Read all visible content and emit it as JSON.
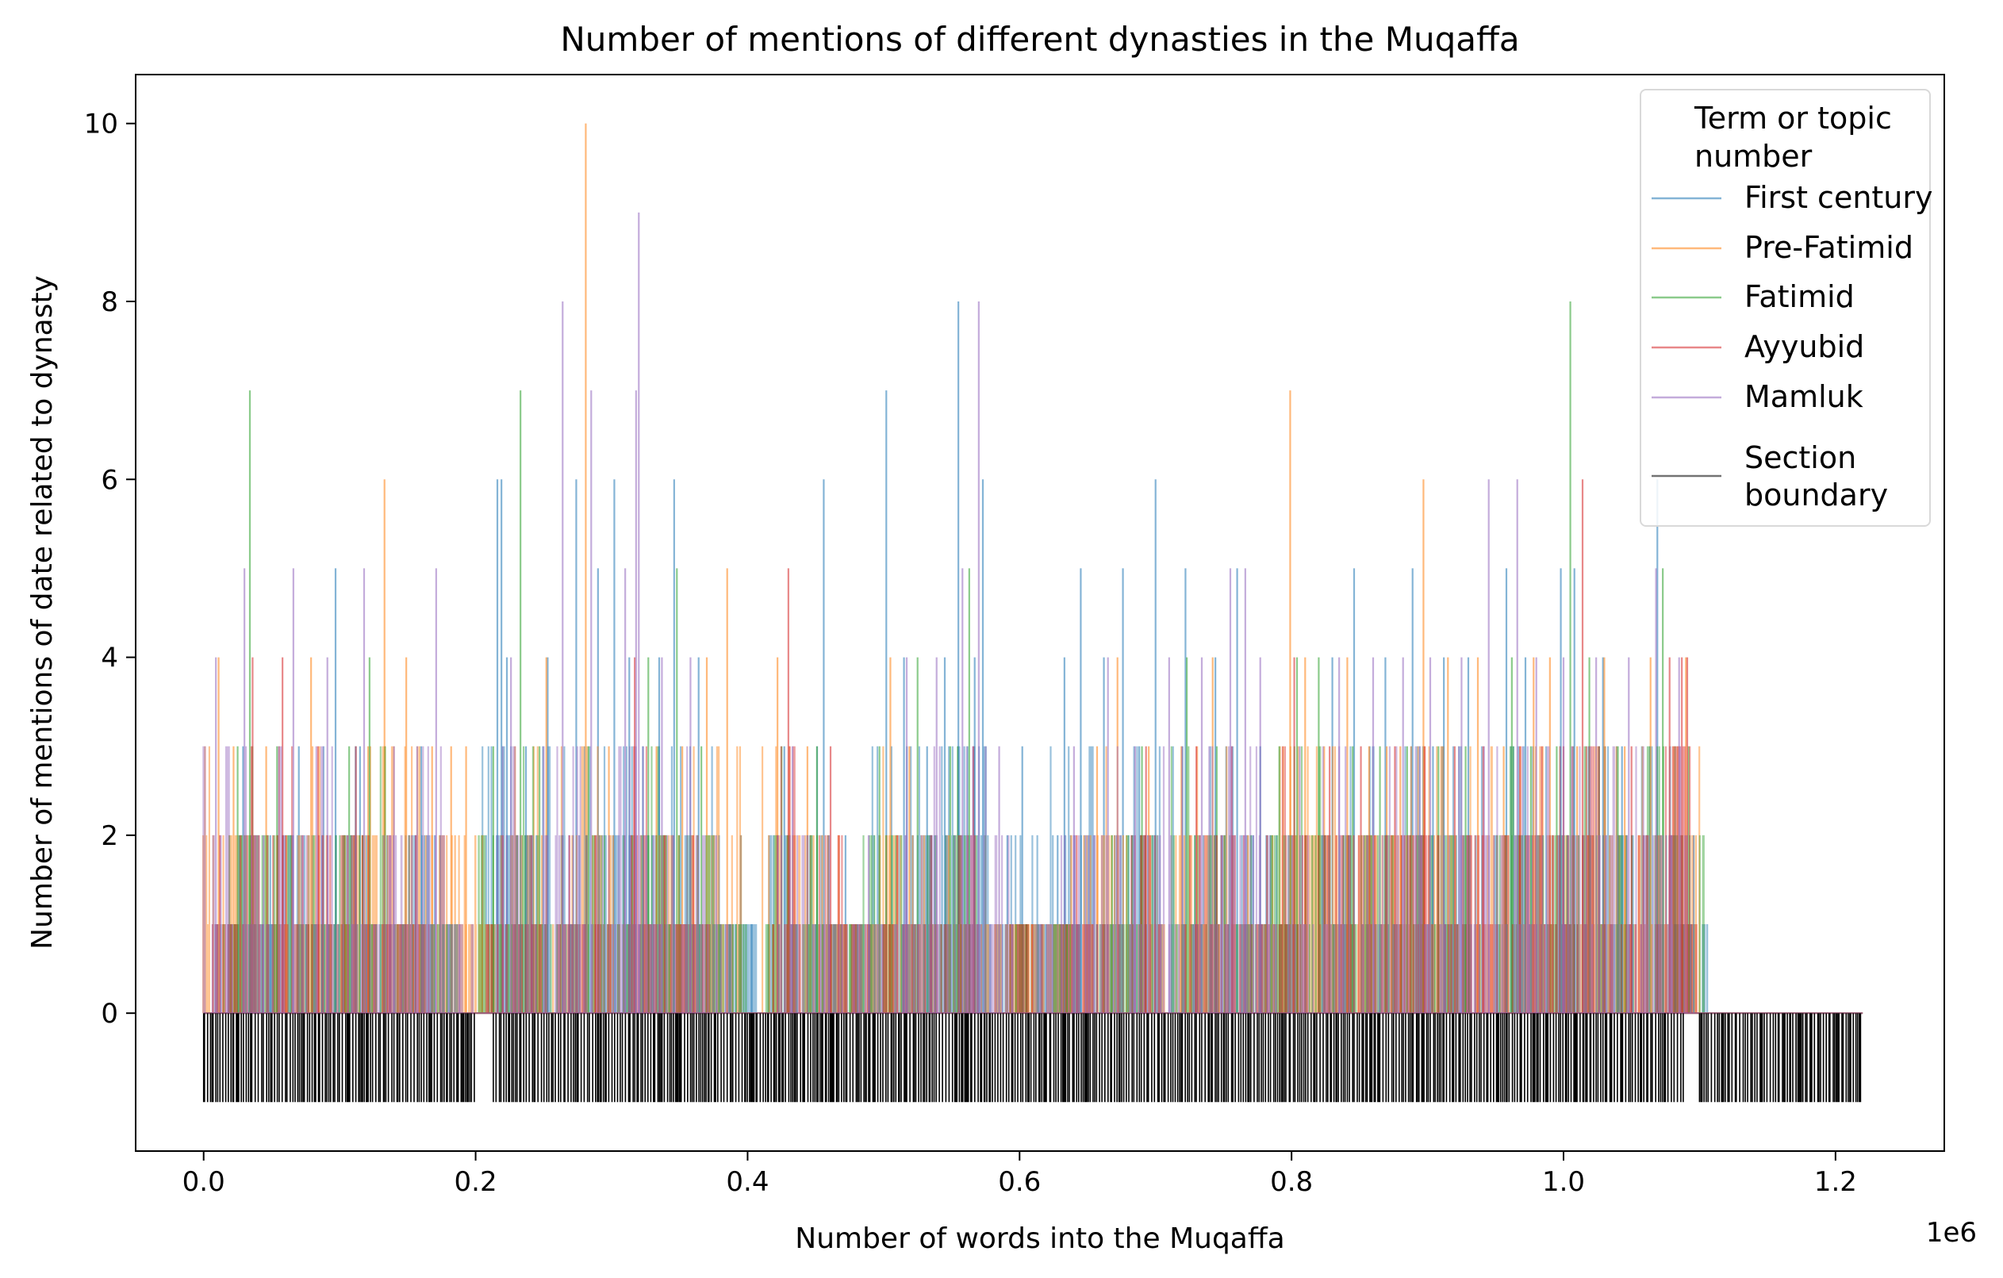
{
  "chart_data": {
    "type": "line",
    "title": "Number of mentions of different dynasties in the Muqaffa",
    "xlabel": "Number of words into the Muqaffa",
    "ylabel": "Number of mentions of date related to dynasty",
    "x_offset_label": "1e6",
    "xlim": [
      -0.05,
      1.28
    ],
    "ylim": [
      -1.55,
      10.55
    ],
    "x_tick_values": [
      0.0,
      0.2,
      0.4,
      0.6,
      0.8,
      1.0,
      1.2
    ],
    "x_tick_labels": [
      "0.0",
      "0.2",
      "0.4",
      "0.6",
      "0.8",
      "1.0",
      "1.2"
    ],
    "y_tick_values": [
      0,
      2,
      4,
      6,
      8,
      10
    ],
    "y_tick_labels": [
      "0",
      "2",
      "4",
      "6",
      "8",
      "10"
    ],
    "grid": false,
    "legend_title": "Term or topic number",
    "legend_title_lines": [
      "Term or topic",
      "number"
    ],
    "legend_position": "top-right",
    "series": [
      {
        "name": "First century",
        "color": "#1f77b4",
        "peaks": [
          [
            0.018,
            1
          ],
          [
            0.029,
            3
          ],
          [
            0.049,
            2
          ],
          [
            0.07,
            3
          ],
          [
            0.087,
            2
          ],
          [
            0.097,
            5
          ],
          [
            0.115,
            3
          ],
          [
            0.135,
            2
          ],
          [
            0.16,
            3
          ],
          [
            0.174,
            2
          ],
          [
            0.216,
            6
          ],
          [
            0.219,
            6
          ],
          [
            0.223,
            4
          ],
          [
            0.237,
            3
          ],
          [
            0.253,
            4
          ],
          [
            0.274,
            6
          ],
          [
            0.29,
            5
          ],
          [
            0.302,
            6
          ],
          [
            0.313,
            4
          ],
          [
            0.323,
            3
          ],
          [
            0.335,
            4
          ],
          [
            0.346,
            6
          ],
          [
            0.364,
            4
          ],
          [
            0.379,
            2
          ],
          [
            0.395,
            2
          ],
          [
            0.403,
            1
          ],
          [
            0.427,
            3
          ],
          [
            0.444,
            2
          ],
          [
            0.456,
            6
          ],
          [
            0.472,
            2
          ],
          [
            0.49,
            1
          ],
          [
            0.502,
            7
          ],
          [
            0.515,
            4
          ],
          [
            0.532,
            3
          ],
          [
            0.545,
            4
          ],
          [
            0.555,
            8
          ],
          [
            0.567,
            4
          ],
          [
            0.573,
            6
          ],
          [
            0.591,
            2
          ],
          [
            0.602,
            3
          ],
          [
            0.62,
            1
          ],
          [
            0.628,
            2
          ],
          [
            0.633,
            4
          ],
          [
            0.645,
            5
          ],
          [
            0.662,
            4
          ],
          [
            0.676,
            5
          ],
          [
            0.688,
            3
          ],
          [
            0.7,
            6
          ],
          [
            0.722,
            5
          ],
          [
            0.744,
            4
          ],
          [
            0.76,
            5
          ],
          [
            0.777,
            3
          ],
          [
            0.796,
            1
          ],
          [
            0.83,
            4
          ],
          [
            0.846,
            5
          ],
          [
            0.869,
            4
          ],
          [
            0.889,
            5
          ],
          [
            0.904,
            3
          ],
          [
            0.912,
            4
          ],
          [
            0.93,
            4
          ],
          [
            0.958,
            5
          ],
          [
            0.972,
            4
          ],
          [
            0.998,
            5
          ],
          [
            1.008,
            5
          ],
          [
            1.029,
            4
          ],
          [
            1.043,
            3
          ],
          [
            1.069,
            6
          ],
          [
            1.082,
            2
          ],
          [
            1.094,
            1
          ]
        ]
      },
      {
        "name": "Pre-Fatimid",
        "color": "#ff7f0e",
        "peaks": [
          [
            0.011,
            4
          ],
          [
            0.022,
            3
          ],
          [
            0.046,
            3
          ],
          [
            0.061,
            2
          ],
          [
            0.079,
            4
          ],
          [
            0.104,
            2
          ],
          [
            0.121,
            3
          ],
          [
            0.133,
            6
          ],
          [
            0.149,
            4
          ],
          [
            0.168,
            3
          ],
          [
            0.182,
            3
          ],
          [
            0.193,
            3
          ],
          [
            0.205,
            2
          ],
          [
            0.229,
            3
          ],
          [
            0.252,
            4
          ],
          [
            0.281,
            10
          ],
          [
            0.298,
            3
          ],
          [
            0.315,
            2
          ],
          [
            0.333,
            3
          ],
          [
            0.352,
            3
          ],
          [
            0.37,
            4
          ],
          [
            0.385,
            5
          ],
          [
            0.422,
            4
          ],
          [
            0.444,
            3
          ],
          [
            0.467,
            2
          ],
          [
            0.484,
            1
          ],
          [
            0.505,
            4
          ],
          [
            0.519,
            3
          ],
          [
            0.548,
            2
          ],
          [
            0.582,
            1
          ],
          [
            0.597,
            1
          ],
          [
            0.609,
            1
          ],
          [
            0.623,
            1
          ],
          [
            0.638,
            2
          ],
          [
            0.657,
            3
          ],
          [
            0.672,
            4
          ],
          [
            0.695,
            3
          ],
          [
            0.719,
            3
          ],
          [
            0.742,
            4
          ],
          [
            0.768,
            2
          ],
          [
            0.786,
            2
          ],
          [
            0.799,
            7
          ],
          [
            0.81,
            4
          ],
          [
            0.824,
            3
          ],
          [
            0.841,
            4
          ],
          [
            0.857,
            3
          ],
          [
            0.87,
            3
          ],
          [
            0.88,
            3
          ],
          [
            0.897,
            6
          ],
          [
            0.915,
            4
          ],
          [
            0.937,
            4
          ],
          [
            0.956,
            3
          ],
          [
            0.978,
            4
          ],
          [
            0.99,
            4
          ],
          [
            1.01,
            3
          ],
          [
            1.03,
            4
          ],
          [
            1.045,
            3
          ],
          [
            1.064,
            4
          ],
          [
            1.09,
            4
          ]
        ]
      },
      {
        "name": "Fatimid",
        "color": "#2ca02c",
        "peaks": [
          [
            0.025,
            3
          ],
          [
            0.034,
            7
          ],
          [
            0.054,
            3
          ],
          [
            0.081,
            2
          ],
          [
            0.107,
            3
          ],
          [
            0.122,
            4
          ],
          [
            0.151,
            2
          ],
          [
            0.179,
            1
          ],
          [
            0.213,
            3
          ],
          [
            0.233,
            7
          ],
          [
            0.247,
            3
          ],
          [
            0.264,
            2
          ],
          [
            0.283,
            3
          ],
          [
            0.309,
            2
          ],
          [
            0.327,
            4
          ],
          [
            0.348,
            5
          ],
          [
            0.366,
            3
          ],
          [
            0.387,
            1
          ],
          [
            0.425,
            3
          ],
          [
            0.451,
            3
          ],
          [
            0.475,
            1
          ],
          [
            0.497,
            3
          ],
          [
            0.525,
            4
          ],
          [
            0.549,
            3
          ],
          [
            0.563,
            5
          ],
          [
            0.605,
            1
          ],
          [
            0.635,
            1
          ],
          [
            0.668,
            2
          ],
          [
            0.69,
            3
          ],
          [
            0.723,
            4
          ],
          [
            0.745,
            3
          ],
          [
            0.77,
            2
          ],
          [
            0.791,
            3
          ],
          [
            0.804,
            4
          ],
          [
            0.82,
            4
          ],
          [
            0.845,
            3
          ],
          [
            0.865,
            3
          ],
          [
            0.885,
            3
          ],
          [
            0.908,
            3
          ],
          [
            0.928,
            3
          ],
          [
            0.962,
            4
          ],
          [
            0.976,
            3
          ],
          [
            0.995,
            3
          ],
          [
            1.005,
            8
          ],
          [
            1.019,
            4
          ],
          [
            1.04,
            3
          ],
          [
            1.073,
            5
          ],
          [
            1.092,
            3
          ]
        ]
      },
      {
        "name": "Ayyubid",
        "color": "#d62728",
        "peaks": [
          [
            0.012,
            2
          ],
          [
            0.036,
            4
          ],
          [
            0.058,
            4
          ],
          [
            0.084,
            3
          ],
          [
            0.112,
            3
          ],
          [
            0.137,
            2
          ],
          [
            0.156,
            2
          ],
          [
            0.22,
            2
          ],
          [
            0.241,
            2
          ],
          [
            0.269,
            2
          ],
          [
            0.288,
            2
          ],
          [
            0.317,
            4
          ],
          [
            0.339,
            2
          ],
          [
            0.36,
            2
          ],
          [
            0.43,
            5
          ],
          [
            0.461,
            3
          ],
          [
            0.478,
            1
          ],
          [
            0.51,
            2
          ],
          [
            0.535,
            2
          ],
          [
            0.566,
            3
          ],
          [
            0.605,
            1
          ],
          [
            0.642,
            2
          ],
          [
            0.661,
            1
          ],
          [
            0.693,
            3
          ],
          [
            0.73,
            3
          ],
          [
            0.756,
            3
          ],
          [
            0.782,
            2
          ],
          [
            0.802,
            4
          ],
          [
            0.828,
            3
          ],
          [
            0.851,
            3
          ],
          [
            0.876,
            3
          ],
          [
            0.898,
            3
          ],
          [
            0.92,
            3
          ],
          [
            0.941,
            3
          ],
          [
            0.968,
            3
          ],
          [
            0.984,
            3
          ],
          [
            1.0,
            3
          ],
          [
            1.014,
            6
          ],
          [
            1.026,
            3
          ],
          [
            1.05,
            3
          ],
          [
            1.078,
            4
          ],
          [
            1.087,
            4
          ],
          [
            1.091,
            4
          ]
        ]
      },
      {
        "name": "Mamluk",
        "color": "#9467bd",
        "peaks": [
          [
            0.009,
            4
          ],
          [
            0.03,
            5
          ],
          [
            0.044,
            2
          ],
          [
            0.066,
            5
          ],
          [
            0.091,
            4
          ],
          [
            0.118,
            5
          ],
          [
            0.14,
            3
          ],
          [
            0.157,
            3
          ],
          [
            0.171,
            5
          ],
          [
            0.188,
            1
          ],
          [
            0.226,
            4
          ],
          [
            0.25,
            3
          ],
          [
            0.264,
            8
          ],
          [
            0.285,
            7
          ],
          [
            0.31,
            5
          ],
          [
            0.318,
            7
          ],
          [
            0.32,
            9
          ],
          [
            0.337,
            4
          ],
          [
            0.358,
            4
          ],
          [
            0.377,
            2
          ],
          [
            0.433,
            3
          ],
          [
            0.46,
            2
          ],
          [
            0.489,
            2
          ],
          [
            0.517,
            4
          ],
          [
            0.539,
            4
          ],
          [
            0.558,
            5
          ],
          [
            0.57,
            8
          ],
          [
            0.585,
            3
          ],
          [
            0.615,
            1
          ],
          [
            0.64,
            3
          ],
          [
            0.665,
            4
          ],
          [
            0.685,
            3
          ],
          [
            0.71,
            4
          ],
          [
            0.734,
            4
          ],
          [
            0.755,
            5
          ],
          [
            0.766,
            5
          ],
          [
            0.777,
            4
          ],
          [
            0.806,
            3
          ],
          [
            0.835,
            4
          ],
          [
            0.86,
            4
          ],
          [
            0.882,
            4
          ],
          [
            0.902,
            4
          ],
          [
            0.925,
            4
          ],
          [
            0.945,
            6
          ],
          [
            0.966,
            6
          ],
          [
            0.98,
            4
          ],
          [
            1.0,
            4
          ],
          [
            1.024,
            4
          ],
          [
            1.048,
            4
          ],
          [
            1.068,
            5
          ],
          [
            1.085,
            4
          ]
        ]
      },
      {
        "name": "Section boundary",
        "color": "#000000",
        "coverage_ranges": [
          [
            0.0,
            0.2
          ],
          [
            0.213,
            1.09
          ],
          [
            1.1,
            1.22
          ]
        ]
      }
    ]
  }
}
